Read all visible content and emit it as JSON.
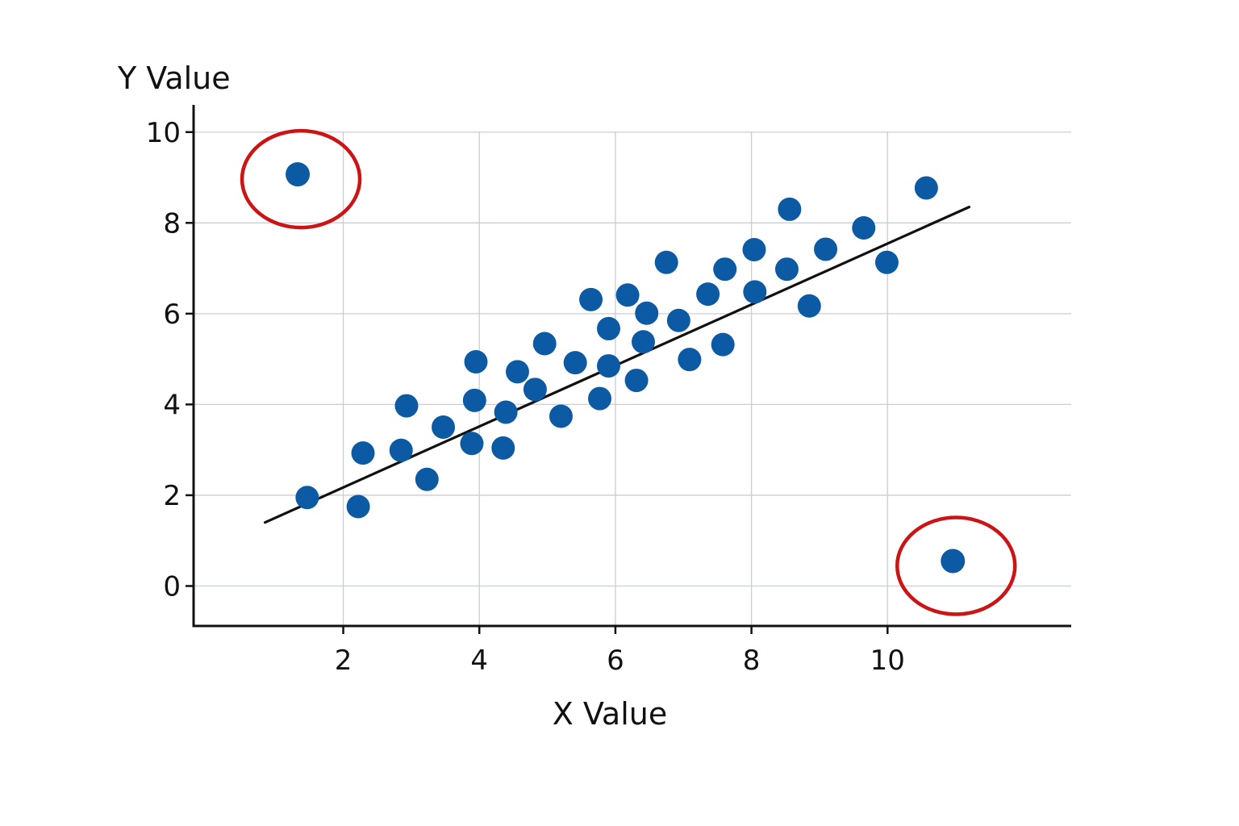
{
  "chart_data": {
    "type": "scatter",
    "title": "",
    "xlabel": "X Value",
    "ylabel": "Y Value",
    "xlim": [
      -0.2,
      12.7
    ],
    "ylim": [
      -0.88,
      10.6
    ],
    "xticks": [
      2,
      4,
      6,
      8,
      10
    ],
    "yticks": [
      0,
      2,
      4,
      6,
      8,
      10
    ],
    "grid": true,
    "colors": {
      "point": "#0b5aa3",
      "trend": "#111111",
      "outlier_ring": "#cc1414",
      "grid": "#c9cdd4",
      "axis": "#111111"
    },
    "points": [
      {
        "x": 1.47,
        "y": 1.95
      },
      {
        "x": 2.22,
        "y": 1.75
      },
      {
        "x": 2.29,
        "y": 2.93
      },
      {
        "x": 2.85,
        "y": 2.99
      },
      {
        "x": 2.93,
        "y": 3.97
      },
      {
        "x": 3.23,
        "y": 2.35
      },
      {
        "x": 3.47,
        "y": 3.5
      },
      {
        "x": 3.89,
        "y": 3.14
      },
      {
        "x": 3.93,
        "y": 4.09
      },
      {
        "x": 3.95,
        "y": 4.94
      },
      {
        "x": 4.35,
        "y": 3.04
      },
      {
        "x": 4.39,
        "y": 3.83
      },
      {
        "x": 4.56,
        "y": 4.72
      },
      {
        "x": 4.82,
        "y": 4.33
      },
      {
        "x": 4.96,
        "y": 5.34
      },
      {
        "x": 5.2,
        "y": 3.74
      },
      {
        "x": 5.41,
        "y": 4.92
      },
      {
        "x": 5.64,
        "y": 6.31
      },
      {
        "x": 5.77,
        "y": 4.13
      },
      {
        "x": 5.9,
        "y": 5.67
      },
      {
        "x": 5.9,
        "y": 4.85
      },
      {
        "x": 6.18,
        "y": 6.41
      },
      {
        "x": 6.31,
        "y": 4.53
      },
      {
        "x": 6.41,
        "y": 5.38
      },
      {
        "x": 6.46,
        "y": 6.01
      },
      {
        "x": 6.75,
        "y": 7.13
      },
      {
        "x": 6.93,
        "y": 5.85
      },
      {
        "x": 7.09,
        "y": 4.99
      },
      {
        "x": 7.36,
        "y": 6.43
      },
      {
        "x": 7.58,
        "y": 5.32
      },
      {
        "x": 7.61,
        "y": 6.98
      },
      {
        "x": 8.04,
        "y": 7.41
      },
      {
        "x": 8.05,
        "y": 6.48
      },
      {
        "x": 8.52,
        "y": 6.98
      },
      {
        "x": 8.56,
        "y": 8.3
      },
      {
        "x": 8.85,
        "y": 6.17
      },
      {
        "x": 9.09,
        "y": 7.42
      },
      {
        "x": 9.65,
        "y": 7.89
      },
      {
        "x": 9.99,
        "y": 7.13
      },
      {
        "x": 10.57,
        "y": 8.77
      }
    ],
    "outliers": [
      {
        "x": 1.33,
        "y": 9.07
      },
      {
        "x": 10.96,
        "y": 0.55
      }
    ],
    "trendline": {
      "x": [
        0.85,
        11.2
      ],
      "y": [
        1.4,
        8.35
      ]
    }
  }
}
